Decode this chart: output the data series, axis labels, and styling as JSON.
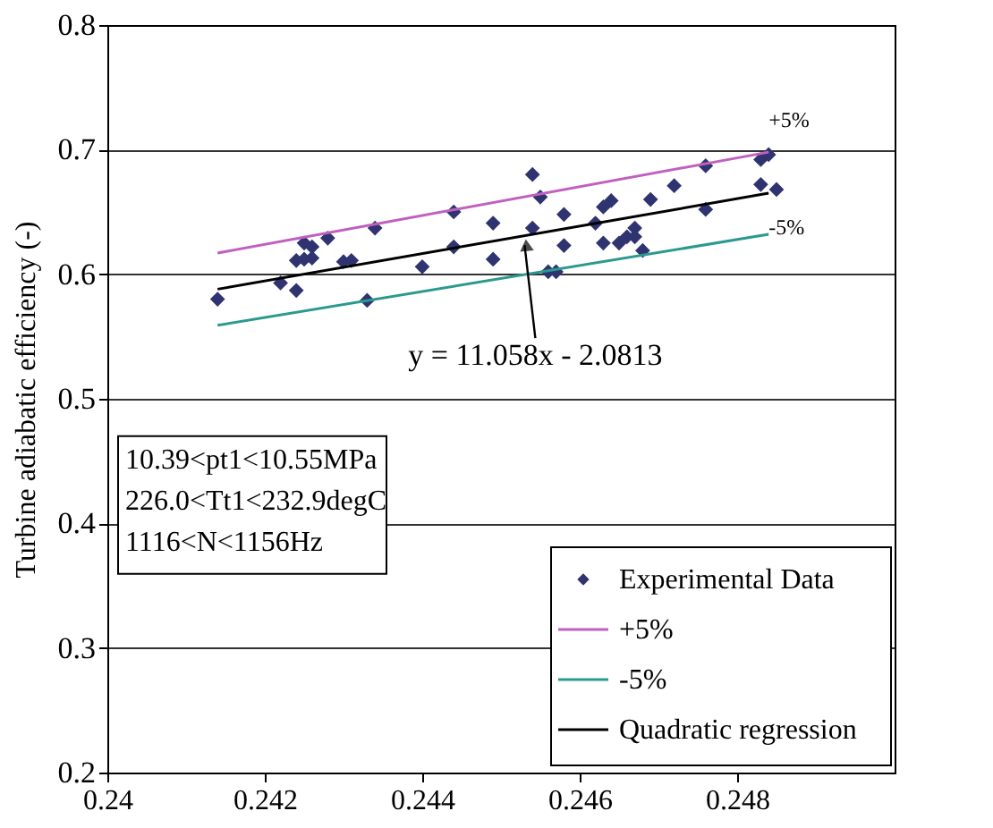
{
  "chart_data": {
    "type": "scatter",
    "ylabel": "Turbine adiabatic efficiency (-)",
    "xlim": [
      0.24,
      0.25
    ],
    "xticks": [
      0.24,
      0.242,
      0.244,
      0.246,
      0.248
    ],
    "ylim": [
      0.2,
      0.8
    ],
    "yticks": [
      0.2,
      0.3,
      0.4,
      0.5,
      0.6,
      0.7,
      0.8
    ],
    "grid": "y",
    "legend": "bottom right",
    "series": [
      {
        "name": "Experimental Data",
        "color": "#2f3470",
        "marker": "diamond",
        "x": [
          0.2414,
          0.2422,
          0.2424,
          0.2424,
          0.2425,
          0.2425,
          0.2426,
          0.2426,
          0.2428,
          0.243,
          0.2431,
          0.2433,
          0.2434,
          0.244,
          0.2444,
          0.2444,
          0.2449,
          0.2449,
          0.2454,
          0.2454,
          0.2455,
          0.2456,
          0.2457,
          0.2458,
          0.2458,
          0.2462,
          0.2463,
          0.2463,
          0.2464,
          0.2465,
          0.2466,
          0.2467,
          0.2467,
          0.2468,
          0.2469,
          0.2472,
          0.2476,
          0.2476,
          0.2483,
          0.2484,
          0.2483,
          0.2485
        ],
        "values": [
          0.58,
          0.593,
          0.587,
          0.611,
          0.612,
          0.625,
          0.622,
          0.613,
          0.629,
          0.61,
          0.611,
          0.579,
          0.637,
          0.606,
          0.65,
          0.622,
          0.612,
          0.641,
          0.68,
          0.637,
          0.662,
          0.602,
          0.602,
          0.623,
          0.648,
          0.641,
          0.625,
          0.654,
          0.659,
          0.625,
          0.63,
          0.637,
          0.63,
          0.619,
          0.66,
          0.671,
          0.687,
          0.652,
          0.692,
          0.696,
          0.672,
          0.668
        ]
      },
      {
        "name": "+5%",
        "color": "#c060c0",
        "type": "line",
        "line_style": "solid",
        "x": [
          0.2414,
          0.2484
        ],
        "values": [
          0.617,
          0.698
        ]
      },
      {
        "name": "-5%",
        "color": "#2a9a8f",
        "type": "line",
        "line_style": "solid",
        "x": [
          0.2414,
          0.2484
        ],
        "values": [
          0.559,
          0.632
        ]
      },
      {
        "name": "Quadratic regression",
        "color": "#000000",
        "type": "line",
        "line_style": "solid",
        "x": [
          0.2414,
          0.2484
        ],
        "values": [
          0.588,
          0.665
        ]
      }
    ],
    "annotations": [
      {
        "text": "y = 11.058x - 2.0813",
        "x": 0.2453,
        "y": 0.632
      },
      "10.39<pt1<10.55MPa",
      "226.0<Tt1<232.9degC",
      "1116<N<1156Hz"
    ]
  }
}
